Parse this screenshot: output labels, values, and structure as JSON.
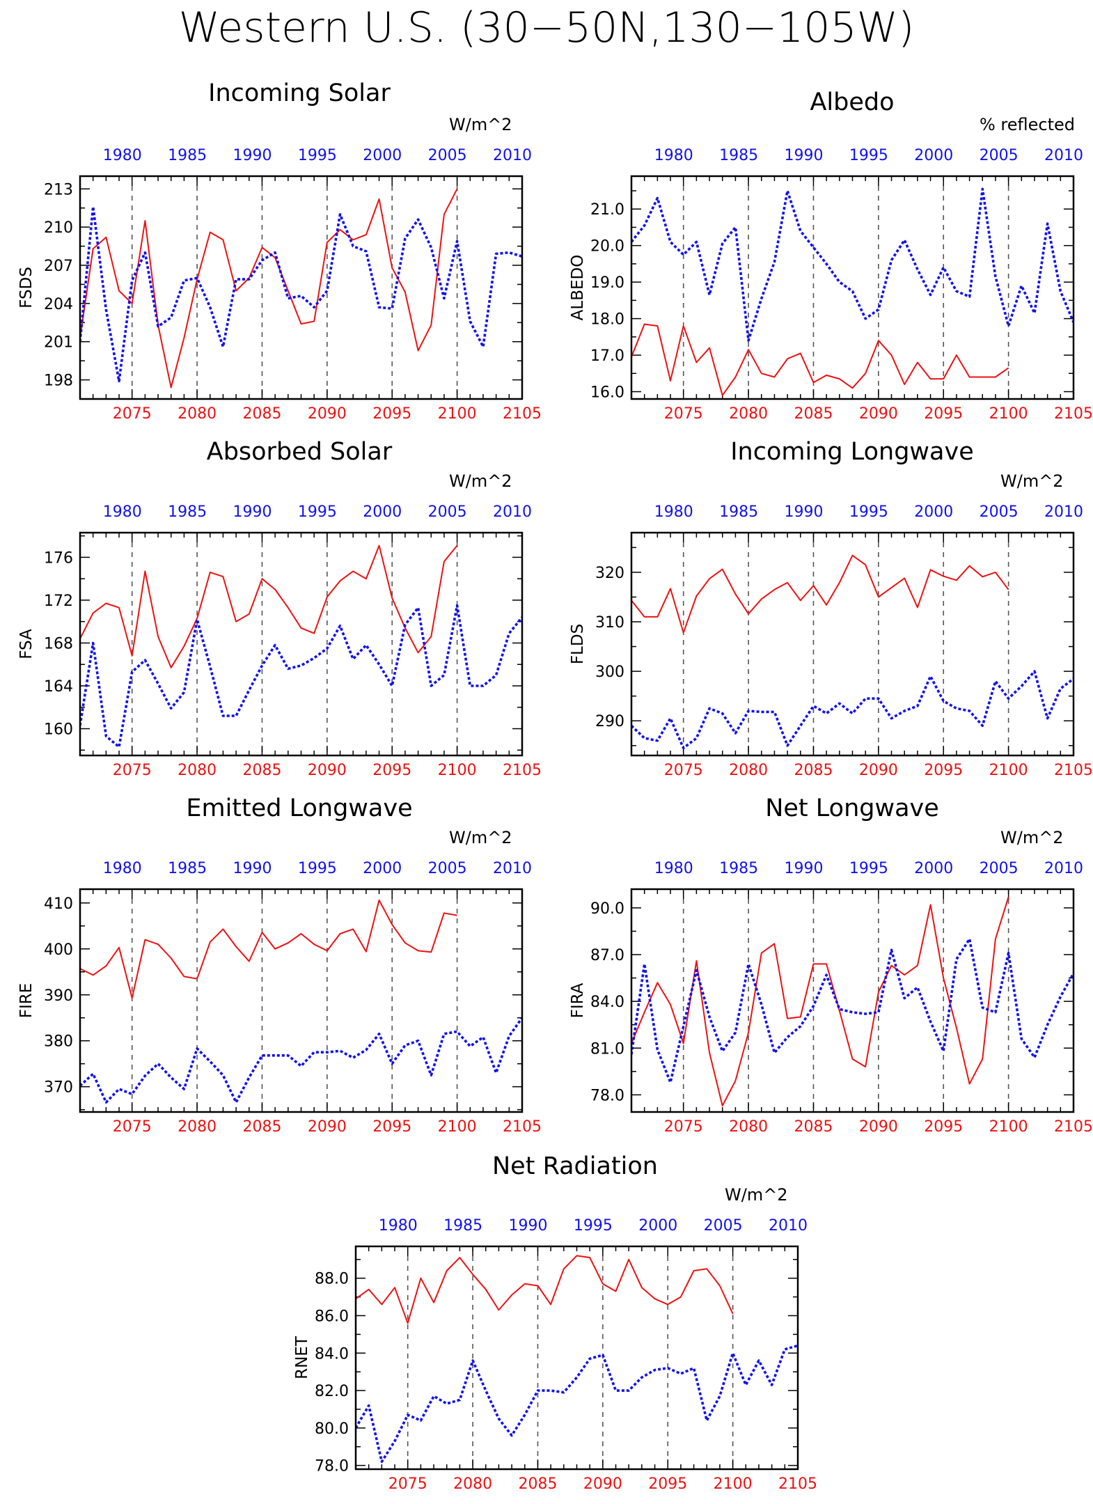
{
  "main_title": "Western U.S. (30−50N,130−105W)",
  "colors": {
    "future_series": "#ee1111",
    "historical_series": "#1111ee",
    "frame": "#000000",
    "decade_lines": "#555555"
  },
  "chart_data": [
    {
      "type": "line",
      "title": "Incoming Solar",
      "units": "W/m^2",
      "ylabel": "FSDS",
      "ylim": [
        196.5,
        214
      ],
      "yticks": [
        198,
        201,
        204,
        207,
        210,
        213
      ],
      "ytick_labels": [
        "198",
        "201",
        "204",
        "207",
        "210",
        "213"
      ],
      "xlim_future": [
        2071,
        2105
      ],
      "xticks_future": [
        2075,
        2080,
        2085,
        2090,
        2095,
        2100,
        2105
      ],
      "xticks_historical": [
        1980,
        1985,
        1990,
        1995,
        2000,
        2005,
        2010
      ],
      "xlim_historical": [
        1976,
        2010
      ],
      "series": [
        {
          "x_start": 2071,
          "values": [
            201.3,
            208.3,
            209.2,
            205.0,
            204.0,
            210.5,
            202.3,
            197.4,
            201.3,
            205.9,
            209.6,
            209.0,
            205.0,
            206.0,
            208.4,
            207.6,
            205.0,
            202.4,
            202.6,
            208.8,
            209.8,
            209.0,
            209.4,
            212.2,
            206.8,
            204.9,
            200.3,
            202.3,
            211.0,
            213.0
          ]
        },
        {
          "x_start": 1976,
          "values": [
            201.0,
            211.6,
            203.5,
            197.9,
            205.8,
            208.0,
            202.2,
            202.9,
            205.8,
            206.0,
            203.7,
            200.6,
            205.9,
            205.9,
            207.4,
            208.0,
            204.4,
            204.6,
            203.7,
            205.0,
            211.0,
            208.5,
            208.1,
            203.7,
            203.6,
            209.1,
            210.6,
            208.4,
            204.4,
            208.9,
            202.6,
            200.6,
            207.9,
            208.0,
            207.7
          ]
        }
      ]
    },
    {
      "type": "line",
      "title": "Albedo",
      "units": "% reflected",
      "ylabel": "ALBEDO",
      "ylim": [
        15.8,
        21.9
      ],
      "yticks": [
        16,
        17,
        18,
        19,
        20,
        21
      ],
      "ytick_labels": [
        "16.0",
        "17.0",
        "18.0",
        "19.0",
        "20.0",
        "21.0"
      ],
      "xlim_future": [
        2071,
        2105
      ],
      "xticks_future": [
        2075,
        2080,
        2085,
        2090,
        2095,
        2100,
        2105
      ],
      "xticks_historical": [
        1980,
        1985,
        1990,
        1995,
        2000,
        2005,
        2010
      ],
      "xlim_historical": [
        1976,
        2010
      ],
      "series": [
        {
          "x_start": 2071,
          "values": [
            16.95,
            17.85,
            17.8,
            16.3,
            17.8,
            16.8,
            17.2,
            15.9,
            16.4,
            17.15,
            16.5,
            16.4,
            16.9,
            17.05,
            16.25,
            16.45,
            16.35,
            16.1,
            16.5,
            17.4,
            17.0,
            16.2,
            16.8,
            16.35,
            16.35,
            17.0,
            16.4,
            16.4,
            16.4,
            16.65
          ]
        },
        {
          "x_start": 1976,
          "values": [
            20.1,
            20.55,
            21.3,
            20.1,
            19.75,
            20.1,
            18.65,
            20.05,
            20.5,
            17.4,
            18.55,
            19.55,
            21.5,
            20.4,
            19.95,
            19.5,
            19.0,
            18.75,
            18.0,
            18.25,
            19.6,
            20.15,
            19.35,
            18.65,
            19.4,
            18.75,
            18.6,
            21.55,
            19.15,
            17.8,
            18.9,
            18.15,
            20.6,
            18.75,
            17.9
          ]
        }
      ]
    },
    {
      "type": "line",
      "title": "Absorbed Solar",
      "units": "W/m^2",
      "ylabel": "FSA",
      "ylim": [
        157.5,
        178.3
      ],
      "yticks": [
        160,
        164,
        168,
        172,
        176
      ],
      "ytick_labels": [
        "160",
        "164",
        "168",
        "172",
        "176"
      ],
      "xlim_future": [
        2071,
        2105
      ],
      "xticks_future": [
        2075,
        2080,
        2085,
        2090,
        2095,
        2100,
        2105
      ],
      "xticks_historical": [
        1980,
        1985,
        1990,
        1995,
        2000,
        2005,
        2010
      ],
      "xlim_historical": [
        1976,
        2010
      ],
      "series": [
        {
          "x_start": 2071,
          "values": [
            168.4,
            170.8,
            171.7,
            171.3,
            166.8,
            174.7,
            168.6,
            165.7,
            167.7,
            170.3,
            174.6,
            174.2,
            170.0,
            170.7,
            174.0,
            173.0,
            171.3,
            169.4,
            168.9,
            172.3,
            173.8,
            174.7,
            174.0,
            177.1,
            172.2,
            169.4,
            167.1,
            168.6,
            175.6,
            177.1
          ]
        },
        {
          "x_start": 1976,
          "values": [
            160.3,
            168.0,
            159.3,
            158.3,
            165.3,
            166.4,
            164.2,
            161.9,
            163.4,
            170.2,
            165.8,
            161.2,
            161.2,
            163.6,
            165.9,
            167.8,
            165.6,
            165.9,
            166.6,
            167.5,
            169.6,
            166.5,
            167.8,
            166.0,
            164.0,
            169.7,
            171.3,
            164.0,
            165.0,
            171.5,
            164.0,
            164.0,
            165.0,
            168.9,
            170.4
          ]
        }
      ]
    },
    {
      "type": "line",
      "title": "Incoming Longwave",
      "units": "W/m^2",
      "ylabel": "FLDS",
      "ylim": [
        283,
        328
      ],
      "yticks": [
        290,
        300,
        310,
        320
      ],
      "ytick_labels": [
        "290",
        "300",
        "310",
        "320"
      ],
      "xlim_future": [
        2071,
        2105
      ],
      "xticks_future": [
        2075,
        2080,
        2085,
        2090,
        2095,
        2100,
        2105
      ],
      "xticks_historical": [
        1980,
        1985,
        1990,
        1995,
        2000,
        2005,
        2010
      ],
      "xlim_historical": [
        1976,
        2010
      ],
      "series": [
        {
          "x_start": 2071,
          "values": [
            314.3,
            311.0,
            311.0,
            316.7,
            307.8,
            315.2,
            318.7,
            320.6,
            315.6,
            311.6,
            314.6,
            316.5,
            317.9,
            314.3,
            317.3,
            313.4,
            317.9,
            323.4,
            321.5,
            315.0,
            316.9,
            318.8,
            312.9,
            320.5,
            319.2,
            318.4,
            321.3,
            319.1,
            320.0,
            316.5
          ]
        },
        {
          "x_start": 1976,
          "values": [
            289.0,
            286.5,
            286.0,
            290.5,
            284.5,
            286.5,
            292.5,
            291.5,
            287.5,
            292.0,
            291.8,
            291.8,
            285.0,
            289.0,
            293.0,
            291.5,
            293.5,
            291.5,
            294.5,
            294.5,
            290.5,
            292.0,
            293.0,
            299.0,
            294.0,
            292.5,
            292.0,
            289.0,
            298.0,
            294.5,
            297.0,
            300.0,
            290.5,
            296.5,
            298.5
          ]
        }
      ]
    },
    {
      "type": "line",
      "title": "Emitted Longwave",
      "units": "W/m^2",
      "ylabel": "FIRE",
      "ylim": [
        364.5,
        413
      ],
      "yticks": [
        370,
        380,
        390,
        400,
        410
      ],
      "ytick_labels": [
        "370",
        "380",
        "390",
        "400",
        "410"
      ],
      "xlim_future": [
        2071,
        2105
      ],
      "xticks_future": [
        2075,
        2080,
        2085,
        2090,
        2095,
        2100,
        2105
      ],
      "xticks_historical": [
        1980,
        1985,
        1990,
        1995,
        2000,
        2005,
        2010
      ],
      "xlim_historical": [
        1976,
        2010
      ],
      "series": [
        {
          "x_start": 2071,
          "values": [
            395.7,
            394.3,
            396.3,
            400.3,
            389.3,
            402.0,
            401.0,
            398.0,
            394.0,
            393.5,
            401.5,
            404.3,
            400.5,
            397.3,
            403.6,
            400.0,
            401.3,
            403.3,
            401.0,
            399.6,
            403.3,
            404.3,
            399.4,
            410.6,
            405.3,
            401.3,
            399.6,
            399.3,
            407.8,
            407.3
          ]
        },
        {
          "x_start": 1976,
          "values": [
            370.2,
            372.8,
            366.6,
            369.5,
            368.4,
            372.4,
            375.0,
            372.0,
            369.5,
            378.3,
            375.5,
            372.5,
            366.6,
            372.0,
            376.8,
            376.8,
            376.8,
            374.5,
            377.5,
            377.5,
            377.8,
            376.3,
            378.0,
            381.5,
            375.0,
            379.0,
            380.0,
            372.5,
            381.5,
            382.0,
            378.8,
            380.8,
            373.0,
            381.0,
            385.0
          ]
        }
      ]
    },
    {
      "type": "line",
      "title": "Net Longwave",
      "units": "W/m^2",
      "ylabel": "FIRA",
      "ylim": [
        76.9,
        91.2
      ],
      "yticks": [
        78,
        81,
        84,
        87,
        90
      ],
      "ytick_labels": [
        "78.0",
        "81.0",
        "84.0",
        "87.0",
        "90.0"
      ],
      "xlim_future": [
        2071,
        2105
      ],
      "xticks_future": [
        2075,
        2080,
        2085,
        2090,
        2095,
        2100,
        2105
      ],
      "xticks_historical": [
        1980,
        1985,
        1990,
        1995,
        2000,
        2005,
        2010
      ],
      "xlim_historical": [
        1976,
        2010
      ],
      "series": [
        {
          "x_start": 2071,
          "values": [
            81.3,
            83.3,
            85.2,
            83.8,
            81.3,
            86.6,
            80.7,
            77.3,
            78.9,
            82.0,
            87.1,
            87.7,
            82.9,
            83.0,
            86.4,
            86.4,
            83.4,
            80.3,
            79.8,
            84.6,
            86.3,
            85.7,
            86.3,
            90.2,
            85.5,
            82.3,
            78.7,
            80.3,
            88.0,
            90.7
          ]
        },
        {
          "x_start": 1976,
          "values": [
            80.6,
            86.4,
            80.9,
            78.8,
            82.4,
            86.0,
            83.0,
            80.8,
            82.0,
            86.4,
            83.8,
            80.7,
            81.7,
            82.4,
            83.7,
            85.7,
            83.5,
            83.3,
            83.2,
            83.3,
            87.3,
            84.2,
            84.9,
            82.7,
            80.8,
            86.7,
            88.0,
            83.6,
            83.3,
            87.1,
            81.6,
            80.4,
            82.5,
            84.3,
            85.8
          ]
        }
      ]
    },
    {
      "type": "line",
      "title": "Net Radiation",
      "units": "W/m^2",
      "ylabel": "RNET",
      "ylim": [
        77.8,
        89.7
      ],
      "yticks": [
        78,
        80,
        82,
        84,
        86,
        88
      ],
      "ytick_labels": [
        "78.0",
        "80.0",
        "82.0",
        "84.0",
        "86.0",
        "88.0"
      ],
      "xlim_future": [
        2071,
        2105
      ],
      "xticks_future": [
        2075,
        2080,
        2085,
        2090,
        2095,
        2100,
        2105
      ],
      "xticks_historical": [
        1980,
        1985,
        1990,
        1995,
        2000,
        2005,
        2010
      ],
      "xlim_historical": [
        1976,
        2010
      ],
      "series": [
        {
          "x_start": 2071,
          "values": [
            86.9,
            87.4,
            86.6,
            87.5,
            85.6,
            88.0,
            86.7,
            88.4,
            89.1,
            88.2,
            87.4,
            86.3,
            87.1,
            87.7,
            87.6,
            86.6,
            88.5,
            89.2,
            89.1,
            87.7,
            87.3,
            89.0,
            87.5,
            86.9,
            86.6,
            87.0,
            88.4,
            88.5,
            87.6,
            86.1
          ]
        },
        {
          "x_start": 1976,
          "values": [
            80.0,
            81.2,
            78.2,
            79.3,
            80.7,
            80.4,
            81.7,
            81.3,
            81.5,
            83.6,
            82.0,
            80.5,
            79.6,
            80.7,
            82.0,
            82.0,
            81.9,
            82.7,
            83.7,
            83.9,
            82.0,
            82.0,
            82.7,
            83.1,
            83.2,
            82.9,
            83.2,
            80.4,
            81.7,
            84.0,
            82.3,
            83.6,
            82.3,
            84.2,
            84.4
          ]
        }
      ]
    }
  ]
}
